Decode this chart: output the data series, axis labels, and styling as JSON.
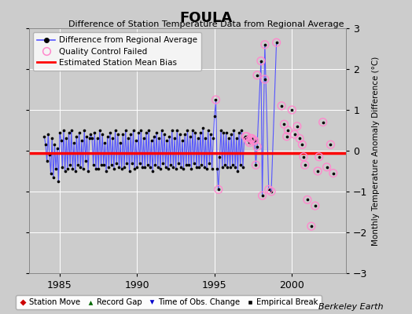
{
  "title": "FOULA",
  "subtitle": "Difference of Station Temperature Data from Regional Average",
  "ylabel": "Monthly Temperature Anomaly Difference (°C)",
  "credit": "Berkeley Earth",
  "xlim": [
    1983.0,
    2003.5
  ],
  "ylim": [
    -3,
    3
  ],
  "yticks": [
    -3,
    -2,
    -1,
    0,
    1,
    2,
    3
  ],
  "xticks": [
    1985,
    1990,
    1995,
    2000
  ],
  "bias_value": -0.05,
  "bg_color": "#cccccc",
  "line_color": "#5555ff",
  "dot_color": "#000000",
  "qc_color": "#ff88cc",
  "bias_color": "#ff0000",
  "connected_segments": [
    [
      [
        1984.0,
        0.35
      ],
      [
        1984.083,
        0.15
      ],
      [
        1984.167,
        -0.25
      ],
      [
        1984.25,
        0.4
      ],
      [
        1984.333,
        -0.1
      ],
      [
        1984.417,
        -0.55
      ],
      [
        1984.5,
        0.3
      ],
      [
        1984.583,
        -0.65
      ],
      [
        1984.667,
        0.15
      ],
      [
        1984.75,
        -0.45
      ],
      [
        1984.833,
        0.05
      ],
      [
        1984.917,
        -0.75
      ],
      [
        1985.0,
        0.45
      ],
      [
        1985.083,
        0.25
      ],
      [
        1985.167,
        -0.4
      ],
      [
        1985.25,
        0.5
      ],
      [
        1985.333,
        -0.5
      ],
      [
        1985.417,
        0.3
      ],
      [
        1985.5,
        -0.45
      ],
      [
        1985.583,
        0.45
      ],
      [
        1985.667,
        -0.35
      ],
      [
        1985.75,
        0.5
      ],
      [
        1985.833,
        -0.45
      ],
      [
        1985.917,
        0.2
      ],
      [
        1986.0,
        -0.5
      ],
      [
        1986.083,
        0.35
      ],
      [
        1986.167,
        -0.35
      ],
      [
        1986.25,
        0.45
      ],
      [
        1986.333,
        -0.4
      ],
      [
        1986.417,
        0.25
      ],
      [
        1986.5,
        -0.45
      ],
      [
        1986.583,
        0.5
      ],
      [
        1986.667,
        -0.25
      ],
      [
        1986.75,
        0.35
      ],
      [
        1986.833,
        -0.5
      ],
      [
        1986.917,
        0.3
      ],
      [
        1987.0,
        0.4
      ],
      [
        1987.083,
        0.3
      ],
      [
        1987.167,
        -0.35
      ],
      [
        1987.25,
        0.45
      ],
      [
        1987.333,
        -0.45
      ],
      [
        1987.417,
        0.3
      ],
      [
        1987.5,
        -0.45
      ],
      [
        1987.583,
        0.5
      ],
      [
        1987.667,
        -0.35
      ],
      [
        1987.75,
        0.4
      ],
      [
        1987.833,
        -0.35
      ],
      [
        1987.917,
        0.2
      ],
      [
        1988.0,
        -0.5
      ],
      [
        1988.083,
        0.35
      ],
      [
        1988.167,
        -0.4
      ],
      [
        1988.25,
        0.45
      ],
      [
        1988.333,
        -0.35
      ],
      [
        1988.417,
        0.3
      ],
      [
        1988.5,
        -0.45
      ],
      [
        1988.583,
        0.5
      ],
      [
        1988.667,
        -0.3
      ],
      [
        1988.75,
        0.4
      ],
      [
        1988.833,
        -0.4
      ],
      [
        1988.917,
        0.2
      ],
      [
        1989.0,
        -0.45
      ],
      [
        1989.083,
        0.4
      ],
      [
        1989.167,
        -0.4
      ],
      [
        1989.25,
        0.5
      ],
      [
        1989.333,
        -0.3
      ],
      [
        1989.417,
        0.3
      ],
      [
        1989.5,
        -0.5
      ],
      [
        1989.583,
        0.4
      ],
      [
        1989.667,
        -0.3
      ],
      [
        1989.75,
        0.5
      ],
      [
        1989.833,
        -0.45
      ],
      [
        1989.917,
        0.25
      ],
      [
        1990.0,
        -0.4
      ],
      [
        1990.083,
        0.45
      ],
      [
        1990.167,
        -0.3
      ],
      [
        1990.25,
        0.5
      ],
      [
        1990.333,
        -0.4
      ],
      [
        1990.417,
        0.3
      ],
      [
        1990.5,
        -0.4
      ],
      [
        1990.583,
        0.45
      ],
      [
        1990.667,
        -0.35
      ],
      [
        1990.75,
        0.5
      ],
      [
        1990.833,
        -0.4
      ],
      [
        1990.917,
        0.25
      ],
      [
        1991.0,
        -0.5
      ],
      [
        1991.083,
        0.35
      ],
      [
        1991.167,
        -0.35
      ],
      [
        1991.25,
        0.45
      ],
      [
        1991.333,
        -0.4
      ],
      [
        1991.417,
        0.3
      ],
      [
        1991.5,
        -0.45
      ],
      [
        1991.583,
        0.5
      ],
      [
        1991.667,
        -0.3
      ],
      [
        1991.75,
        0.4
      ],
      [
        1991.833,
        -0.4
      ],
      [
        1991.917,
        0.25
      ],
      [
        1992.0,
        -0.45
      ],
      [
        1992.083,
        0.35
      ],
      [
        1992.167,
        -0.35
      ],
      [
        1992.25,
        0.5
      ],
      [
        1992.333,
        -0.4
      ],
      [
        1992.417,
        0.3
      ],
      [
        1992.5,
        -0.45
      ],
      [
        1992.583,
        0.5
      ],
      [
        1992.667,
        -0.3
      ],
      [
        1992.75,
        0.4
      ],
      [
        1992.833,
        -0.4
      ],
      [
        1992.917,
        0.25
      ],
      [
        1993.0,
        -0.45
      ],
      [
        1993.083,
        0.4
      ],
      [
        1993.167,
        -0.35
      ],
      [
        1993.25,
        0.5
      ],
      [
        1993.333,
        -0.35
      ],
      [
        1993.417,
        0.35
      ],
      [
        1993.5,
        -0.45
      ],
      [
        1993.583,
        0.5
      ],
      [
        1993.667,
        -0.3
      ],
      [
        1993.75,
        0.45
      ],
      [
        1993.833,
        -0.4
      ],
      [
        1993.917,
        0.3
      ],
      [
        1994.0,
        -0.4
      ],
      [
        1994.083,
        0.45
      ],
      [
        1994.167,
        -0.35
      ],
      [
        1994.25,
        0.55
      ],
      [
        1994.333,
        -0.4
      ],
      [
        1994.417,
        0.3
      ],
      [
        1994.5,
        -0.45
      ],
      [
        1994.583,
        0.5
      ],
      [
        1994.667,
        -0.3
      ],
      [
        1994.75,
        0.4
      ],
      [
        1994.833,
        -0.45
      ],
      [
        1994.917,
        0.3
      ],
      [
        1995.0,
        0.85
      ],
      [
        1995.083,
        1.25
      ],
      [
        1995.167,
        -0.45
      ],
      [
        1995.25,
        -0.95
      ],
      [
        1995.333,
        -0.15
      ],
      [
        1995.417,
        0.5
      ],
      [
        1995.5,
        -0.4
      ],
      [
        1995.583,
        0.45
      ],
      [
        1995.667,
        -0.35
      ],
      [
        1995.75,
        0.45
      ],
      [
        1995.833,
        -0.4
      ],
      [
        1995.917,
        0.3
      ],
      [
        1996.0,
        -0.4
      ],
      [
        1996.083,
        0.4
      ],
      [
        1996.167,
        -0.35
      ],
      [
        1996.25,
        0.5
      ],
      [
        1996.333,
        -0.4
      ],
      [
        1996.417,
        0.3
      ],
      [
        1996.5,
        -0.5
      ],
      [
        1996.583,
        0.45
      ],
      [
        1996.667,
        -0.35
      ],
      [
        1996.75,
        0.5
      ],
      [
        1996.833,
        -0.4
      ],
      [
        1996.917,
        0.3
      ],
      [
        1997.0,
        0.35
      ],
      [
        1997.083,
        0.35
      ],
      [
        1997.167,
        0.25
      ],
      [
        1997.25,
        0.2
      ],
      [
        1997.333,
        0.3
      ],
      [
        1997.417,
        0.3
      ],
      [
        1997.5,
        0.25
      ],
      [
        1997.583,
        0.25
      ],
      [
        1997.667,
        -0.35
      ],
      [
        1997.75,
        0.1
      ],
      [
        1998.0,
        2.2
      ],
      [
        1998.083,
        -1.1
      ],
      [
        1998.25,
        2.6
      ],
      [
        1998.5,
        -0.95
      ],
      [
        1998.667,
        -1.0
      ],
      [
        1999.0,
        2.65
      ]
    ]
  ],
  "qc_failed_connected": [
    [
      1995.083,
      1.25
    ],
    [
      1995.25,
      -0.95
    ],
    [
      1997.0,
      0.35
    ],
    [
      1997.083,
      0.35
    ],
    [
      1997.167,
      0.25
    ],
    [
      1997.25,
      0.2
    ],
    [
      1997.333,
      0.3
    ],
    [
      1997.417,
      0.3
    ],
    [
      1997.5,
      0.25
    ],
    [
      1997.583,
      0.25
    ],
    [
      1997.667,
      -0.35
    ],
    [
      1997.75,
      0.1
    ],
    [
      1998.0,
      2.2
    ],
    [
      1998.083,
      -1.1
    ],
    [
      1998.25,
      2.6
    ],
    [
      1998.5,
      -0.95
    ],
    [
      1998.667,
      -1.0
    ],
    [
      1999.0,
      2.65
    ]
  ],
  "qc_failed_scatter": [
    [
      1997.75,
      1.85
    ],
    [
      1998.25,
      1.75
    ],
    [
      1999.333,
      1.1
    ],
    [
      1999.5,
      0.65
    ],
    [
      1999.667,
      0.35
    ],
    [
      1999.75,
      0.5
    ],
    [
      2000.0,
      1.0
    ],
    [
      2000.167,
      0.4
    ],
    [
      2000.333,
      0.6
    ],
    [
      2000.5,
      0.3
    ],
    [
      2000.667,
      0.15
    ],
    [
      2000.75,
      -0.15
    ],
    [
      2000.833,
      -0.35
    ],
    [
      2001.0,
      -1.2
    ],
    [
      2001.25,
      -1.85
    ],
    [
      2001.5,
      -1.35
    ],
    [
      2001.667,
      -0.5
    ],
    [
      2001.75,
      -0.15
    ],
    [
      2002.0,
      0.7
    ],
    [
      2002.25,
      -0.4
    ],
    [
      2002.5,
      0.15
    ],
    [
      2002.667,
      -0.55
    ]
  ]
}
